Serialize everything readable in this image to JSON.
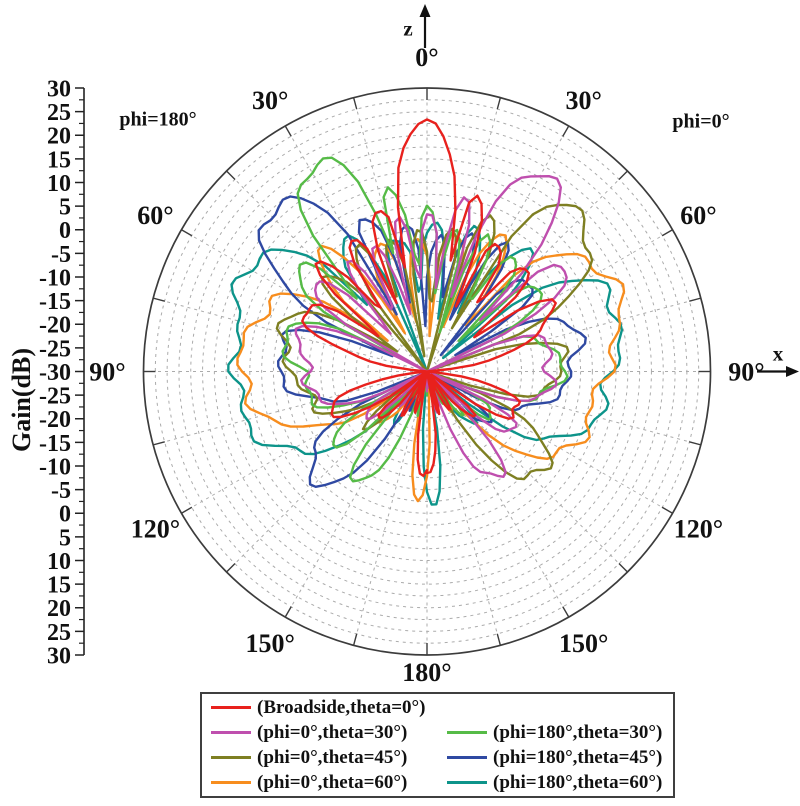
{
  "chart_data": {
    "type": "polar-line",
    "title": "",
    "grid": "dashed concentric rings every 2.5 dB and dashed radial spokes every 15 degrees",
    "radial_axis": {
      "label": "Gain(dB)",
      "min": -30,
      "max": 30,
      "units": "dB",
      "center_value": -30,
      "outer_value": 30,
      "major_tick_db": 5,
      "minor_tick_db": 2.5,
      "ring_step_db": 2.5,
      "tick_labels": [
        30,
        25,
        20,
        15,
        10,
        5,
        0,
        -5,
        -10,
        -15,
        -20,
        -25,
        -30,
        -25,
        -20,
        -15,
        -10,
        -5,
        0,
        5,
        10,
        15,
        20,
        25,
        30
      ]
    },
    "angular_axis": {
      "zero_direction": "up",
      "label_step_deg": 30,
      "grid_step_deg": 15,
      "label_top": "0°",
      "label_bottom": "180°",
      "labels_right": [
        "30°",
        "60°",
        "90°",
        "120°",
        "150°"
      ],
      "labels_left": [
        "30°",
        "60°",
        "90°",
        "120°",
        "150°"
      ]
    },
    "annotations": {
      "phi_left": "phi=180°",
      "phi_right": "phi=0°",
      "axis_z": "z",
      "axis_x": "x"
    },
    "series": [
      {
        "name": "(Broadside,theta=0°)",
        "color": "#e8211d",
        "steer_deg": 0,
        "peak_gain_db": 21,
        "n_elements": 10,
        "seed": 1.3,
        "back_lobe": null
      },
      {
        "name": "(phi=0°,theta=30°)",
        "color": "#bf4fae",
        "steer_deg": 31,
        "peak_gain_db": 19,
        "n_elements": 10,
        "seed": 2.1,
        "back_lobe": null
      },
      {
        "name": "(phi=180°,theta=30°)",
        "color": "#56bb47",
        "steer_deg": -29,
        "peak_gain_db": 20.5,
        "n_elements": 10,
        "seed": 3.2,
        "back_lobe": null
      },
      {
        "name": "(phi=0°,theta=45°)",
        "color": "#7e7f22",
        "steer_deg": 46,
        "peak_gain_db": 16.5,
        "n_elements": 9,
        "seed": 4.4,
        "back_lobe": null
      },
      {
        "name": "(phi=180°,theta=45°)",
        "color": "#2f49a2",
        "steer_deg": -44,
        "peak_gain_db": 17.5,
        "n_elements": 9,
        "seed": 5.0,
        "back_lobe": null
      },
      {
        "name": "(phi=0°,theta=60°)",
        "color": "#f78d1e",
        "steer_deg": 67,
        "peak_gain_db": 12.5,
        "n_elements": 7,
        "seed": 6.2,
        "back_lobe": {
          "center_deg": 184,
          "peak_db": -2.5,
          "width_deg": 6
        }
      },
      {
        "name": "(phi=180°,theta=60°)",
        "color": "#0d948a",
        "steer_deg": -71,
        "peak_gain_db": 13.5,
        "n_elements": 7,
        "seed": 7.1,
        "back_lobe": {
          "center_deg": 177,
          "peak_db": -1.5,
          "width_deg": 6
        }
      }
    ],
    "legend_position": "bottom"
  },
  "legend": {
    "layout_rows": [
      [
        0
      ],
      [
        1,
        2
      ],
      [
        3,
        4
      ],
      [
        5,
        6
      ]
    ]
  }
}
